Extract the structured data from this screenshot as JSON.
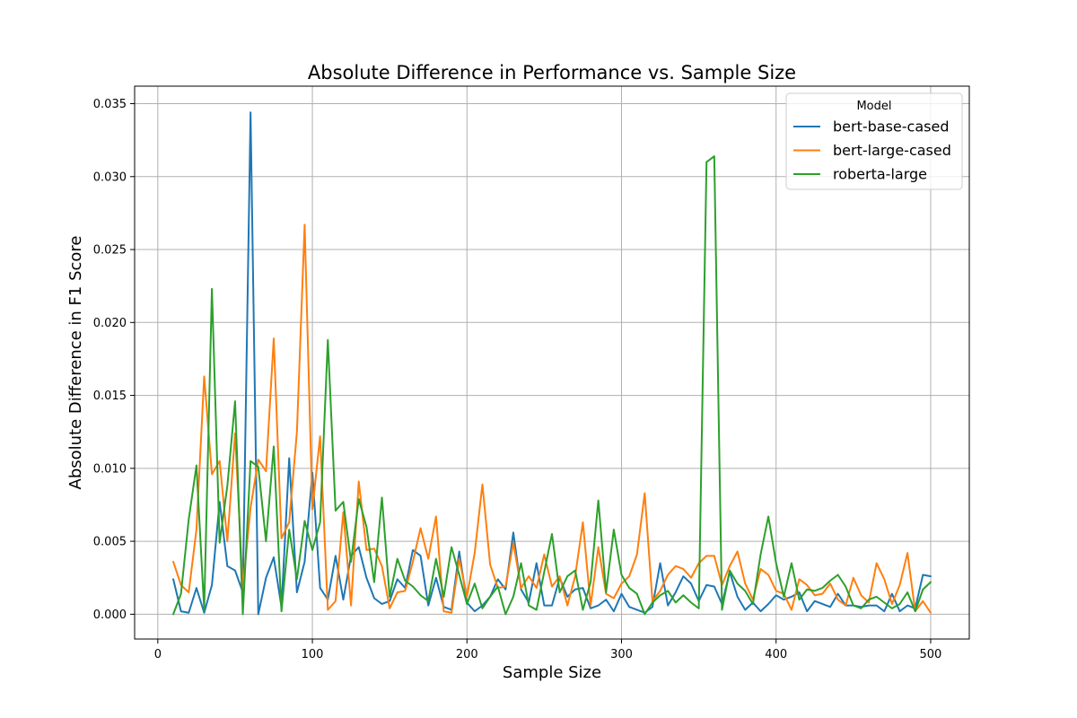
{
  "chart_data": {
    "type": "line",
    "title": "Absolute Difference in Performance vs. Sample Size",
    "xlabel": "Sample Size",
    "ylabel": "Absolute Difference in F1 Score",
    "xlim": [
      -15,
      525
    ],
    "ylim": [
      -0.0017,
      0.0362
    ],
    "xticks": [
      0,
      100,
      200,
      300,
      400,
      500
    ],
    "xtick_labels": [
      "0",
      "100",
      "200",
      "300",
      "400",
      "500"
    ],
    "yticks": [
      0,
      0.005,
      0.01,
      0.015,
      0.02,
      0.025,
      0.03,
      0.035
    ],
    "ytick_labels": [
      "0.000",
      "0.005",
      "0.010",
      "0.015",
      "0.020",
      "0.025",
      "0.030",
      "0.035"
    ],
    "grid": true,
    "legend": {
      "title": "Model",
      "position": "top-right"
    },
    "x": [
      10,
      15,
      20,
      25,
      30,
      35,
      40,
      45,
      50,
      55,
      60,
      65,
      70,
      75,
      80,
      85,
      90,
      95,
      100,
      105,
      110,
      115,
      120,
      125,
      130,
      135,
      140,
      145,
      150,
      155,
      160,
      165,
      170,
      175,
      180,
      185,
      190,
      195,
      200,
      205,
      210,
      215,
      220,
      225,
      230,
      235,
      240,
      245,
      250,
      255,
      260,
      265,
      270,
      275,
      280,
      285,
      290,
      295,
      300,
      305,
      310,
      315,
      320,
      325,
      330,
      335,
      340,
      345,
      350,
      355,
      360,
      365,
      370,
      375,
      380,
      385,
      390,
      395,
      400,
      405,
      410,
      415,
      420,
      425,
      430,
      435,
      440,
      445,
      450,
      455,
      460,
      465,
      470,
      475,
      480,
      485,
      490,
      495,
      500
    ],
    "series": [
      {
        "name": "bert-base-cased",
        "color": "#1f77b4",
        "values": [
          0.0024,
          0.0002,
          0.0001,
          0.0018,
          0.0001,
          0.002,
          0.0077,
          0.0033,
          0.003,
          0.0015,
          0.0344,
          0.0,
          0.0025,
          0.0039,
          0.0005,
          0.0107,
          0.0015,
          0.0036,
          0.0097,
          0.0018,
          0.001,
          0.004,
          0.001,
          0.004,
          0.0046,
          0.0025,
          0.0011,
          0.0007,
          0.0009,
          0.0024,
          0.0018,
          0.0044,
          0.004,
          0.0006,
          0.0025,
          0.0005,
          0.0003,
          0.0043,
          0.0008,
          0.0002,
          0.0006,
          0.0012,
          0.0024,
          0.0017,
          0.0056,
          0.0017,
          0.0008,
          0.0035,
          0.0006,
          0.0006,
          0.0025,
          0.0012,
          0.0017,
          0.0018,
          0.0004,
          0.0006,
          0.001,
          0.0002,
          0.0014,
          0.0005,
          0.0003,
          0.0001,
          0.0005,
          0.0035,
          0.0006,
          0.0015,
          0.0026,
          0.0021,
          0.0009,
          0.002,
          0.0019,
          0.0007,
          0.0029,
          0.0012,
          0.0003,
          0.0008,
          0.0002,
          0.0007,
          0.0013,
          0.001,
          0.0012,
          0.0015,
          0.0002,
          0.0009,
          0.0007,
          0.0005,
          0.0014,
          0.0006,
          0.0006,
          0.0005,
          0.0006,
          0.0006,
          0.0002,
          0.0014,
          0.0002,
          0.0006,
          0.0004,
          0.0027,
          0.0026
        ]
      },
      {
        "name": "bert-large-cased",
        "color": "#ff7f0e",
        "values": [
          0.0036,
          0.002,
          0.0015,
          0.0058,
          0.0163,
          0.0096,
          0.0105,
          0.005,
          0.0124,
          0.0018,
          0.0073,
          0.0106,
          0.0098,
          0.0189,
          0.0052,
          0.0063,
          0.0125,
          0.0267,
          0.0072,
          0.0122,
          0.0003,
          0.0009,
          0.007,
          0.0006,
          0.0091,
          0.0044,
          0.0045,
          0.0033,
          0.0004,
          0.0015,
          0.0016,
          0.0036,
          0.0059,
          0.0038,
          0.0067,
          0.0002,
          0.0001,
          0.0038,
          0.0012,
          0.0042,
          0.0089,
          0.0034,
          0.0018,
          0.0019,
          0.0049,
          0.0018,
          0.0026,
          0.0018,
          0.0041,
          0.0019,
          0.0026,
          0.0006,
          0.0026,
          0.0063,
          0.0006,
          0.0046,
          0.0014,
          0.0011,
          0.0021,
          0.0026,
          0.0041,
          0.0083,
          0.0009,
          0.0016,
          0.0027,
          0.0033,
          0.0031,
          0.0025,
          0.0035,
          0.004,
          0.004,
          0.002,
          0.0033,
          0.0043,
          0.0021,
          0.001,
          0.0031,
          0.0027,
          0.0016,
          0.0014,
          0.0003,
          0.0024,
          0.002,
          0.0013,
          0.0014,
          0.0021,
          0.001,
          0.0006,
          0.0025,
          0.0013,
          0.0008,
          0.0035,
          0.0024,
          0.0007,
          0.002,
          0.0042,
          0.0002,
          0.0009,
          0.0001
        ]
      },
      {
        "name": "roberta-large",
        "color": "#2ca02c",
        "values": [
          0.0,
          0.0014,
          0.0065,
          0.0102,
          0.0003,
          0.0223,
          0.0049,
          0.0088,
          0.0146,
          0.0,
          0.0105,
          0.0101,
          0.005,
          0.0115,
          0.0002,
          0.0058,
          0.0024,
          0.0064,
          0.0044,
          0.0063,
          0.0188,
          0.0071,
          0.0077,
          0.0036,
          0.0079,
          0.006,
          0.0022,
          0.008,
          0.0012,
          0.0038,
          0.0023,
          0.0019,
          0.0013,
          0.0009,
          0.0038,
          0.0012,
          0.0046,
          0.0027,
          0.0007,
          0.0021,
          0.0004,
          0.0012,
          0.0019,
          0.0,
          0.0012,
          0.0035,
          0.0006,
          0.0003,
          0.0029,
          0.0055,
          0.0015,
          0.0026,
          0.003,
          0.0003,
          0.0022,
          0.0078,
          0.0015,
          0.0058,
          0.0027,
          0.0018,
          0.0014,
          0.0,
          0.0008,
          0.0013,
          0.0016,
          0.0008,
          0.0013,
          0.0008,
          0.0004,
          0.031,
          0.0314,
          0.0003,
          0.003,
          0.0021,
          0.0016,
          0.0007,
          0.0041,
          0.0067,
          0.0035,
          0.0012,
          0.0035,
          0.001,
          0.0017,
          0.0016,
          0.0018,
          0.0023,
          0.0027,
          0.0019,
          0.0006,
          0.0004,
          0.001,
          0.0012,
          0.0008,
          0.0004,
          0.0007,
          0.0015,
          0.0002,
          0.0017,
          0.0022
        ]
      }
    ]
  }
}
